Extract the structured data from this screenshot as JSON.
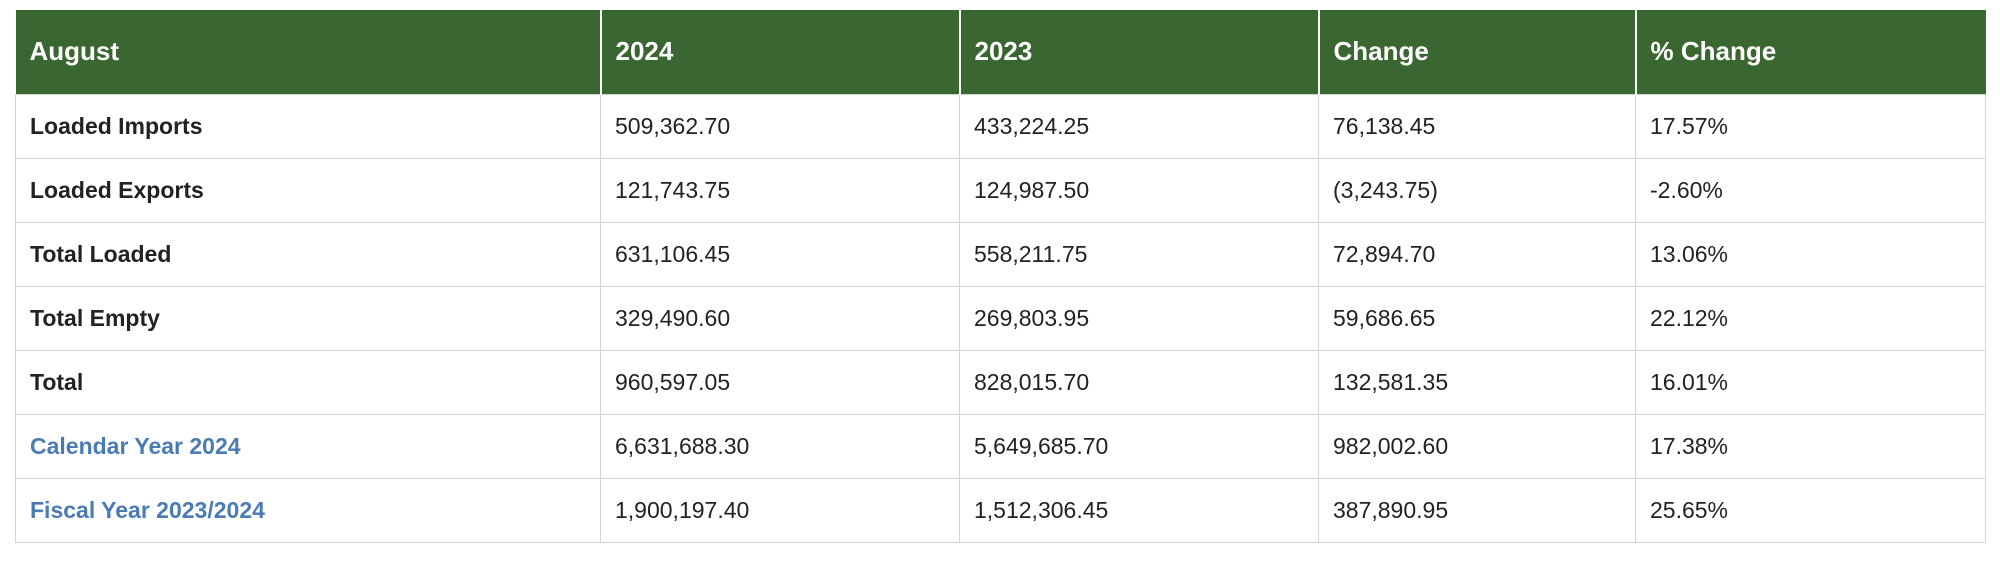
{
  "table": {
    "headers": [
      "August",
      "2024",
      "2023",
      "Change",
      "% Change"
    ],
    "rows": [
      {
        "label": "Loaded Imports",
        "link": false,
        "cells": [
          "509,362.70",
          "433,224.25",
          "76,138.45",
          "17.57%"
        ]
      },
      {
        "label": "Loaded Exports",
        "link": false,
        "cells": [
          "121,743.75",
          "124,987.50",
          "(3,243.75)",
          "-2.60%"
        ]
      },
      {
        "label": "Total Loaded",
        "link": false,
        "cells": [
          "631,106.45",
          "558,211.75",
          "72,894.70",
          "13.06%"
        ]
      },
      {
        "label": "Total Empty",
        "link": false,
        "cells": [
          "329,490.60",
          "269,803.95",
          "59,686.65",
          "22.12%"
        ]
      },
      {
        "label": "Total",
        "link": false,
        "cells": [
          "960,597.05",
          "828,015.70",
          "132,581.35",
          "16.01%"
        ]
      },
      {
        "label": "Calendar Year 2024",
        "link": true,
        "cells": [
          "6,631,688.30",
          "5,649,685.70",
          "982,002.60",
          "17.38%"
        ]
      },
      {
        "label": "Fiscal Year 2023/2024",
        "link": true,
        "cells": [
          "1,900,197.40",
          "1,512,306.45",
          "387,890.95",
          "25.65%"
        ]
      }
    ]
  },
  "colors": {
    "header_bg": "#396631",
    "header_text": "#ffffff",
    "link_text": "#4a7cb3",
    "border": "#d4d4d4"
  }
}
